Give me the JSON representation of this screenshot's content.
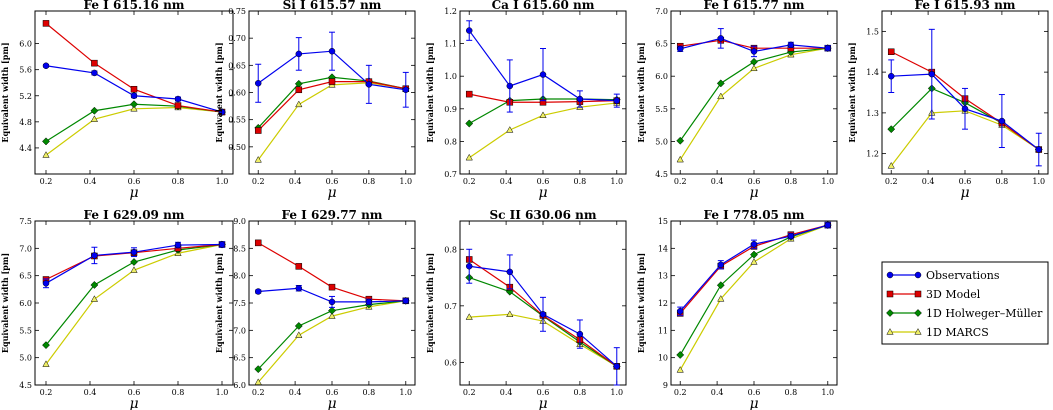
{
  "figure": {
    "legend": [
      {
        "label": "Observations",
        "color": "#0000ee",
        "marker": "circle"
      },
      {
        "label": "3D Model",
        "color": "#dd0000",
        "marker": "square"
      },
      {
        "label": "1D Holweger–Müller",
        "color": "#008800",
        "marker": "diamond"
      },
      {
        "label": "1D MARCS",
        "color": "#cccc00",
        "marker": "triangle"
      }
    ],
    "series_colors": {
      "obs": "#0000ee",
      "model3d": "#dd0000",
      "hm": "#008800",
      "marcs": "#cccc00"
    },
    "marker_fill": {
      "marcs": "#eeee66"
    }
  },
  "chart_data": [
    {
      "type": "line",
      "title": "Fe I 615.16 nm",
      "xlabel": "μ",
      "ylabel": "Equivalent width [pm]",
      "xlim": [
        0.15,
        1.05
      ],
      "ylim": [
        4.0,
        6.5
      ],
      "xticks": [
        "0.2",
        "0.4",
        "0.6",
        "0.8",
        "1.0"
      ],
      "yticks": [
        "4.4",
        "4.8",
        "5.2",
        "5.6",
        "6.0"
      ],
      "x": [
        0.2,
        0.42,
        0.6,
        0.8,
        1.0
      ],
      "series": [
        {
          "name": "Observations",
          "values": [
            5.66,
            5.55,
            5.2,
            5.15,
            4.95
          ],
          "errors": [
            0.02,
            0.03,
            0.03,
            0.03,
            0.02
          ]
        },
        {
          "name": "3D Model",
          "values": [
            6.31,
            5.7,
            5.3,
            5.05,
            4.95
          ]
        },
        {
          "name": "1D Holweger–Müller",
          "values": [
            4.5,
            4.97,
            5.07,
            5.04,
            4.95
          ]
        },
        {
          "name": "1D MARCS",
          "values": [
            4.29,
            4.84,
            5.0,
            5.02,
            4.95
          ]
        }
      ]
    },
    {
      "type": "line",
      "title": "Si I 615.57 nm",
      "xlabel": "μ",
      "ylabel": "Equivalent width [pm]",
      "xlim": [
        0.15,
        1.05
      ],
      "ylim": [
        0.45,
        0.75
      ],
      "xticks": [
        "0.2",
        "0.4",
        "0.6",
        "0.8",
        "1.0"
      ],
      "yticks": [
        "0.50",
        "0.55",
        "0.60",
        "0.65",
        "0.70",
        "0.75"
      ],
      "x": [
        0.2,
        0.42,
        0.6,
        0.8,
        1.0
      ],
      "series": [
        {
          "name": "Observations",
          "values": [
            0.617,
            0.671,
            0.676,
            0.615,
            0.605
          ],
          "errors": [
            0.035,
            0.03,
            0.035,
            0.035,
            0.032
          ]
        },
        {
          "name": "3D Model",
          "values": [
            0.53,
            0.605,
            0.62,
            0.62,
            0.607
          ]
        },
        {
          "name": "1D Holweger–Müller",
          "values": [
            0.535,
            0.616,
            0.628,
            0.621,
            0.607
          ]
        },
        {
          "name": "1D MARCS",
          "values": [
            0.476,
            0.578,
            0.614,
            0.618,
            0.607
          ]
        }
      ]
    },
    {
      "type": "line",
      "title": "Ca I 615.60 nm",
      "xlabel": "μ",
      "ylabel": "Equivalent width [pm]",
      "xlim": [
        0.15,
        1.05
      ],
      "ylim": [
        0.7,
        1.2
      ],
      "xticks": [
        "0.2",
        "0.4",
        "0.6",
        "0.8",
        "1.0"
      ],
      "yticks": [
        "0.7",
        "0.8",
        "0.9",
        "1.0",
        "1.1",
        "1.2"
      ],
      "x": [
        0.2,
        0.42,
        0.6,
        0.8,
        1.0
      ],
      "series": [
        {
          "name": "Observations",
          "values": [
            1.14,
            0.97,
            1.005,
            0.93,
            0.925
          ],
          "errors": [
            0.03,
            0.08,
            0.08,
            0.025,
            0.02
          ]
        },
        {
          "name": "3D Model",
          "values": [
            0.945,
            0.92,
            0.92,
            0.922,
            0.925
          ]
        },
        {
          "name": "1D Holweger–Müller",
          "values": [
            0.855,
            0.925,
            0.93,
            0.93,
            0.928
          ]
        },
        {
          "name": "1D MARCS",
          "values": [
            0.75,
            0.835,
            0.88,
            0.905,
            0.918
          ]
        }
      ]
    },
    {
      "type": "line",
      "title": "Fe I 615.77 nm",
      "xlabel": "μ",
      "ylabel": "Equivalent width [pm]",
      "xlim": [
        0.15,
        1.05
      ],
      "ylim": [
        4.5,
        7.0
      ],
      "xticks": [
        "0.2",
        "0.4",
        "0.6",
        "0.8",
        "1.0"
      ],
      "yticks": [
        "4.5",
        "5.0",
        "5.5",
        "6.0",
        "6.5",
        "7.0"
      ],
      "x": [
        0.2,
        0.42,
        0.6,
        0.8,
        1.0
      ],
      "series": [
        {
          "name": "Observations",
          "values": [
            6.42,
            6.58,
            6.38,
            6.48,
            6.43
          ],
          "errors": [
            0.04,
            0.15,
            0.08,
            0.04,
            0.04
          ]
        },
        {
          "name": "3D Model",
          "values": [
            6.46,
            6.55,
            6.43,
            6.43,
            6.43
          ]
        },
        {
          "name": "1D Holweger–Müller",
          "values": [
            5.01,
            5.89,
            6.22,
            6.37,
            6.43
          ]
        },
        {
          "name": "1D MARCS",
          "values": [
            4.72,
            5.69,
            6.12,
            6.33,
            6.43
          ]
        }
      ]
    },
    {
      "type": "line",
      "title": "Fe I 615.93 nm",
      "xlabel": "μ",
      "ylabel": "Equivalent width [pm]",
      "xlim": [
        0.15,
        1.05
      ],
      "ylim": [
        1.15,
        1.55
      ],
      "xticks": [
        "0.2",
        "0.4",
        "0.6",
        "0.8",
        "1.0"
      ],
      "yticks": [
        "1.2",
        "1.3",
        "1.4",
        "1.5"
      ],
      "x": [
        0.2,
        0.42,
        0.6,
        0.8,
        1.0
      ],
      "series": [
        {
          "name": "Observations",
          "values": [
            1.39,
            1.395,
            1.31,
            1.28,
            1.21
          ],
          "errors": [
            0.04,
            0.11,
            0.05,
            0.065,
            0.04
          ]
        },
        {
          "name": "3D Model",
          "values": [
            1.45,
            1.4,
            1.335,
            1.275,
            1.21
          ]
        },
        {
          "name": "1D Holweger–Müller",
          "values": [
            1.26,
            1.36,
            1.325,
            1.275,
            1.21
          ]
        },
        {
          "name": "1D MARCS",
          "values": [
            1.17,
            1.3,
            1.305,
            1.27,
            1.21
          ]
        }
      ]
    },
    {
      "type": "line",
      "title": "Fe I 629.09 nm",
      "xlabel": "μ",
      "ylabel": "Equivalent width [pm]",
      "xlim": [
        0.15,
        1.05
      ],
      "ylim": [
        4.5,
        7.5
      ],
      "xticks": [
        "0.2",
        "0.4",
        "0.6",
        "0.8",
        "1.0"
      ],
      "yticks": [
        "4.5",
        "5.0",
        "5.5",
        "6.0",
        "6.5",
        "7.0",
        "7.5"
      ],
      "x": [
        0.2,
        0.42,
        0.6,
        0.8,
        1.0
      ],
      "series": [
        {
          "name": "Observations",
          "values": [
            6.36,
            6.87,
            6.93,
            7.06,
            7.07
          ],
          "errors": [
            0.08,
            0.15,
            0.08,
            0.05,
            0.05
          ]
        },
        {
          "name": "3D Model",
          "values": [
            6.43,
            6.86,
            6.92,
            7.0,
            7.07
          ]
        },
        {
          "name": "1D Holweger–Müller",
          "values": [
            5.23,
            6.33,
            6.75,
            6.97,
            7.07
          ]
        },
        {
          "name": "1D MARCS",
          "values": [
            4.88,
            6.07,
            6.6,
            6.91,
            7.07
          ]
        }
      ]
    },
    {
      "type": "line",
      "title": "Fe I 629.77 nm",
      "xlabel": "μ",
      "ylabel": "Equivalent width [pm]",
      "xlim": [
        0.15,
        1.05
      ],
      "ylim": [
        6.0,
        9.0
      ],
      "xticks": [
        "0.2",
        "0.4",
        "0.6",
        "0.8",
        "1.0"
      ],
      "yticks": [
        "6.0",
        "6.5",
        "7.0",
        "7.5",
        "8.0",
        "8.5",
        "9.0"
      ],
      "x": [
        0.2,
        0.42,
        0.6,
        0.8,
        1.0
      ],
      "series": [
        {
          "name": "Observations",
          "values": [
            7.71,
            7.77,
            7.52,
            7.52,
            7.54
          ],
          "errors": [
            0.03,
            0.05,
            0.1,
            0.05,
            0.04
          ]
        },
        {
          "name": "3D Model",
          "values": [
            8.6,
            8.17,
            7.79,
            7.57,
            7.54
          ]
        },
        {
          "name": "1D Holweger–Müller",
          "values": [
            6.29,
            7.08,
            7.36,
            7.47,
            7.54
          ]
        },
        {
          "name": "1D MARCS",
          "values": [
            6.05,
            6.91,
            7.26,
            7.43,
            7.54
          ]
        }
      ]
    },
    {
      "type": "line",
      "title": "Sc II 630.06 nm",
      "xlabel": "μ",
      "ylabel": "Equivalent width [pm]",
      "xlim": [
        0.15,
        1.05
      ],
      "ylim": [
        0.56,
        0.85
      ],
      "xticks": [
        "0.2",
        "0.4",
        "0.6",
        "0.8",
        "1.0"
      ],
      "yticks": [
        "0.6",
        "0.7",
        "0.8"
      ],
      "x": [
        0.2,
        0.42,
        0.6,
        0.8,
        1.0
      ],
      "series": [
        {
          "name": "Observations",
          "values": [
            0.77,
            0.76,
            0.685,
            0.65,
            0.593
          ],
          "errors": [
            0.03,
            0.03,
            0.03,
            0.025,
            0.033
          ]
        },
        {
          "name": "3D Model",
          "values": [
            0.782,
            0.733,
            0.683,
            0.64,
            0.593
          ]
        },
        {
          "name": "1D Holweger–Müller",
          "values": [
            0.75,
            0.725,
            0.682,
            0.636,
            0.593
          ]
        },
        {
          "name": "1D MARCS",
          "values": [
            0.68,
            0.685,
            0.673,
            0.632,
            0.593
          ]
        }
      ]
    },
    {
      "type": "line",
      "title": "Fe I 778.05 nm",
      "xlabel": "μ",
      "ylabel": "Equivalent width [pm]",
      "xlim": [
        0.15,
        1.05
      ],
      "ylim": [
        9,
        15
      ],
      "xticks": [
        "0.2",
        "0.4",
        "0.6",
        "0.8",
        "1.0"
      ],
      "yticks": [
        "9",
        "10",
        "11",
        "12",
        "13",
        "14",
        "15"
      ],
      "x": [
        0.2,
        0.42,
        0.6,
        0.8,
        1.0
      ],
      "series": [
        {
          "name": "Observations",
          "values": [
            11.7,
            13.4,
            14.15,
            14.45,
            14.85
          ],
          "errors": [
            0.15,
            0.15,
            0.15,
            0.1,
            0.1
          ]
        },
        {
          "name": "3D Model",
          "values": [
            11.62,
            13.35,
            14.07,
            14.5,
            14.85
          ]
        },
        {
          "name": "1D Holweger–Müller",
          "values": [
            10.1,
            12.65,
            13.77,
            14.42,
            14.85
          ]
        },
        {
          "name": "1D MARCS",
          "values": [
            9.55,
            12.15,
            13.5,
            14.35,
            14.85
          ]
        }
      ]
    }
  ]
}
